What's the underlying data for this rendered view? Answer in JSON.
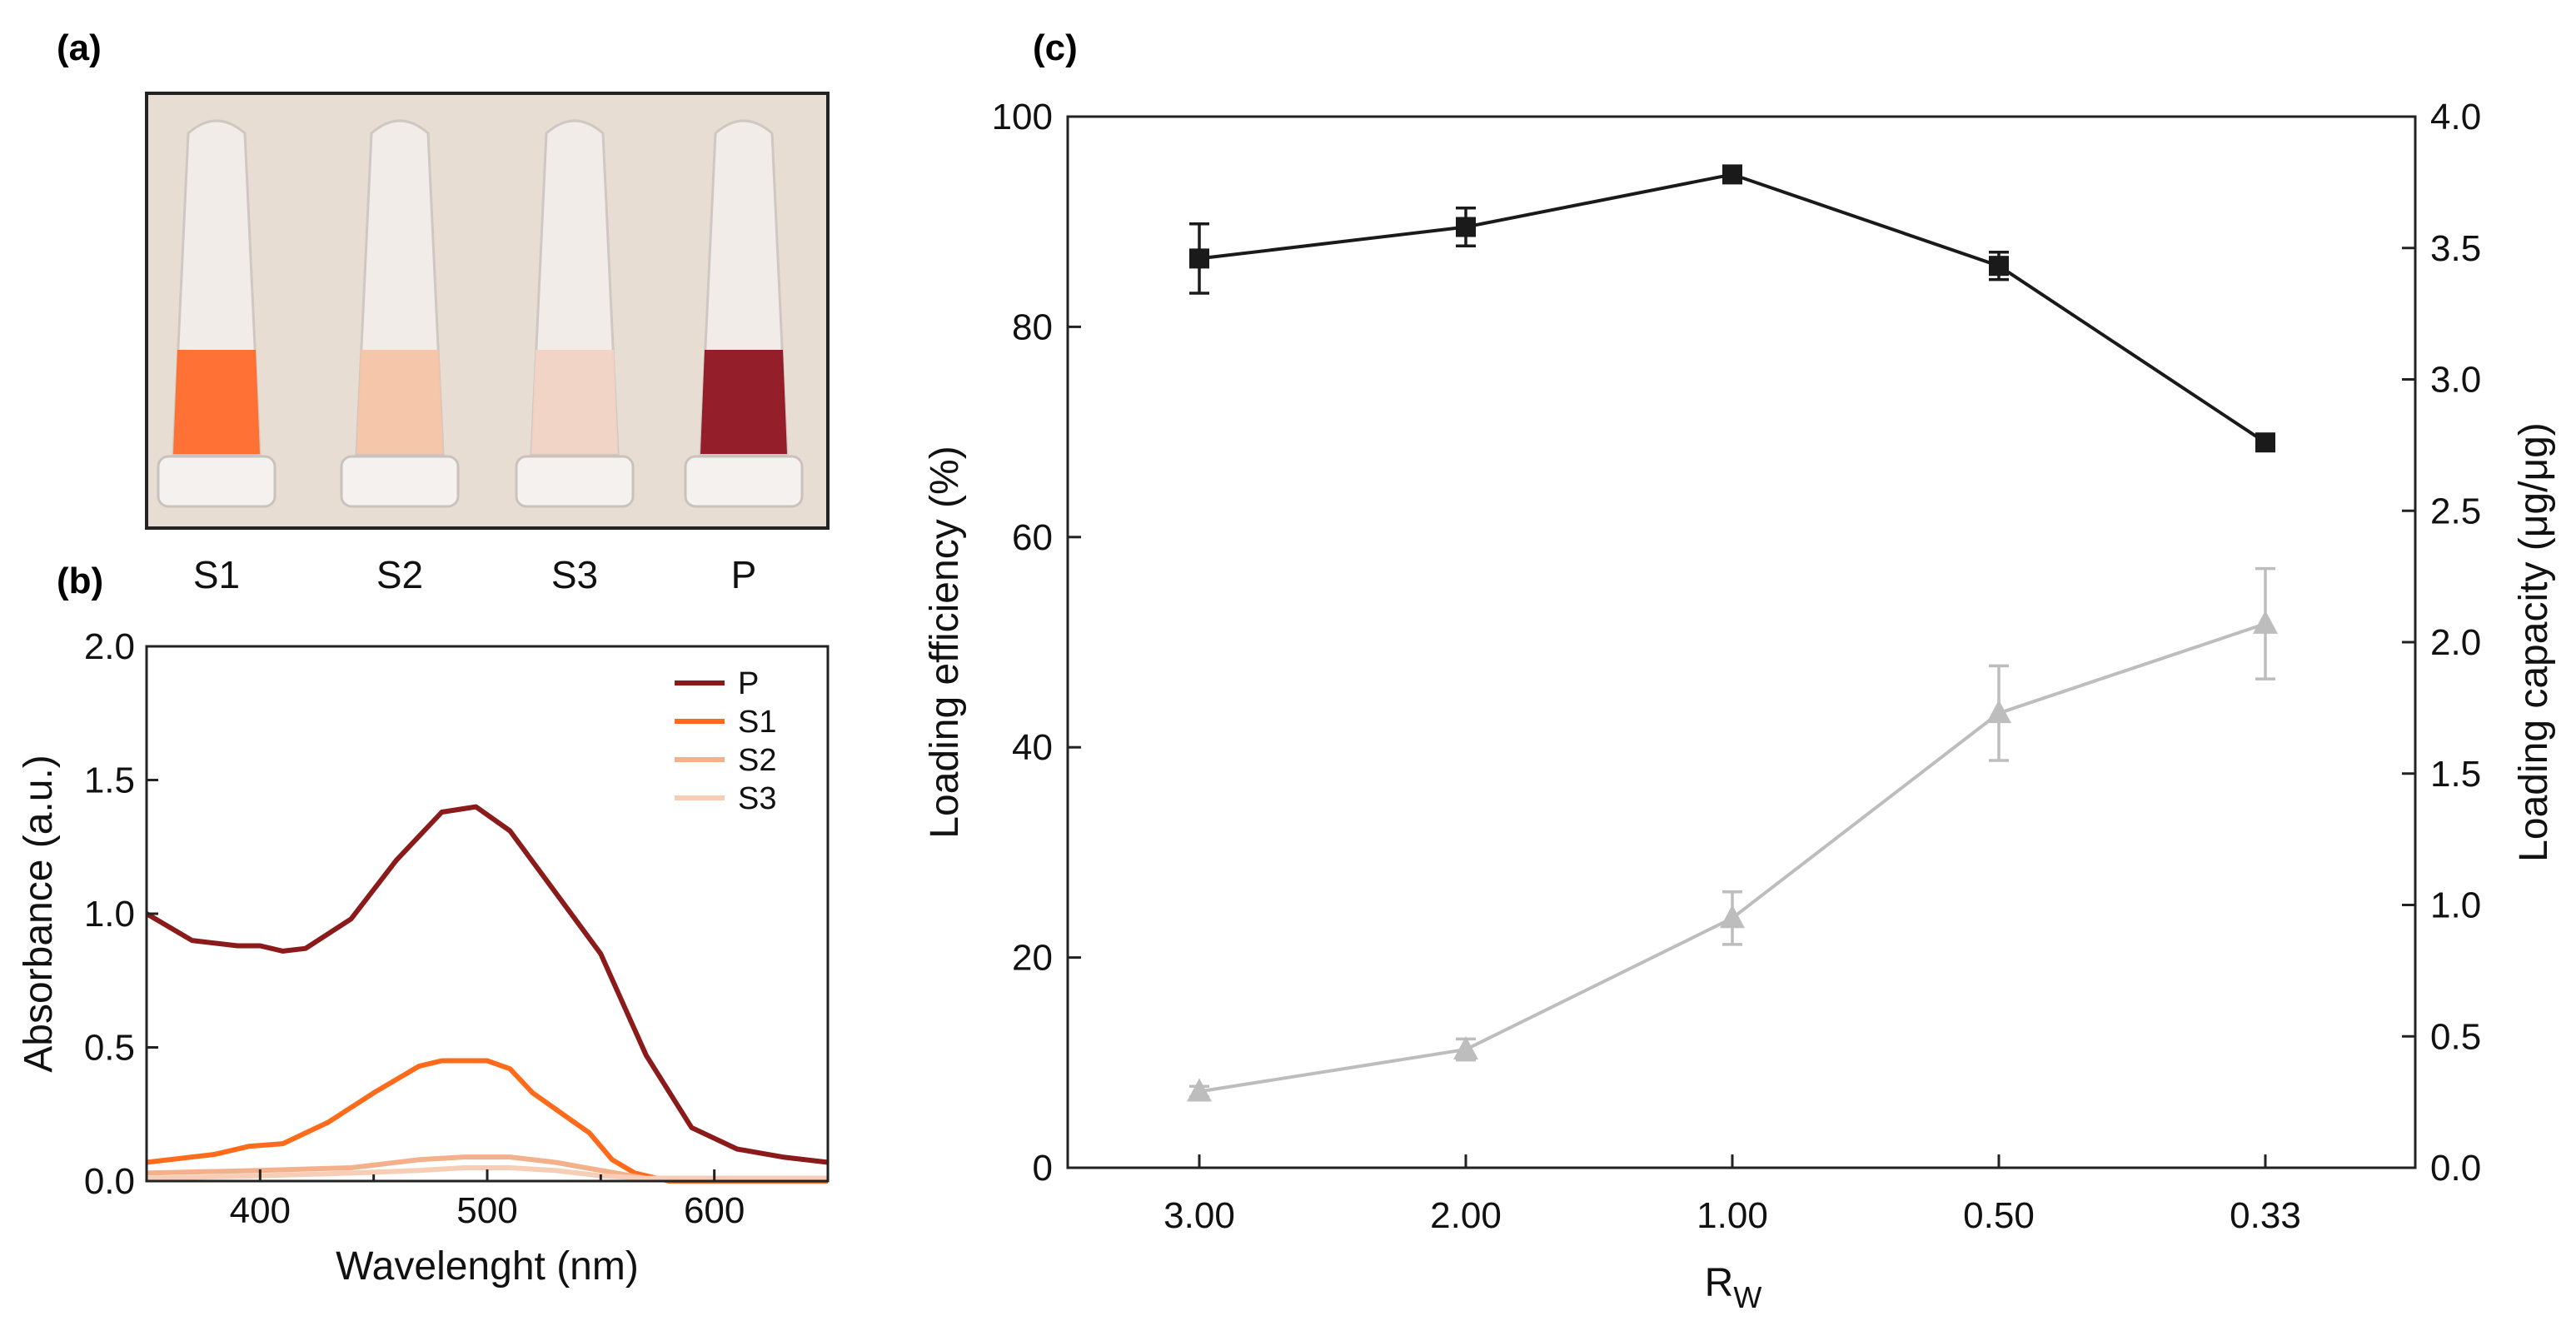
{
  "panels": {
    "a": "(a)",
    "b": "(b)",
    "c": "(c)"
  },
  "photo": {
    "tubes": [
      {
        "label": "S1",
        "color": "#ff6a2a"
      },
      {
        "label": "S2",
        "color": "#f5c4a6"
      },
      {
        "label": "S3",
        "color": "#f1d3c4"
      },
      {
        "label": "P",
        "color": "#8e1420"
      }
    ]
  },
  "chart_data": [
    {
      "id": "b",
      "type": "line",
      "xlabel": "Wavelenght (nm)",
      "ylabel": "Absorbance (a.u.)",
      "xlim": [
        350,
        650
      ],
      "ylim": [
        0,
        2.0
      ],
      "xticks": [
        400,
        500,
        600
      ],
      "yticks": [
        "0.0",
        "0.5",
        "1.0",
        "1.5",
        "2.0"
      ],
      "legend": "top-right",
      "series": [
        {
          "name": "P",
          "color": "#8b1a1a",
          "x": [
            350,
            370,
            390,
            400,
            410,
            420,
            440,
            460,
            480,
            495,
            510,
            530,
            550,
            570,
            590,
            610,
            630,
            650
          ],
          "y": [
            1.0,
            0.9,
            0.88,
            0.88,
            0.86,
            0.87,
            0.98,
            1.2,
            1.38,
            1.4,
            1.31,
            1.08,
            0.85,
            0.47,
            0.2,
            0.12,
            0.09,
            0.07
          ]
        },
        {
          "name": "S1",
          "color": "#ff6b1a",
          "x": [
            350,
            380,
            395,
            410,
            430,
            450,
            470,
            480,
            500,
            510,
            520,
            535,
            545,
            555,
            565,
            580,
            650
          ],
          "y": [
            0.07,
            0.1,
            0.13,
            0.14,
            0.22,
            0.33,
            0.43,
            0.45,
            0.45,
            0.42,
            0.33,
            0.24,
            0.18,
            0.08,
            0.03,
            0.0,
            0.0
          ]
        },
        {
          "name": "S2",
          "color": "#f4b08a",
          "x": [
            350,
            400,
            440,
            470,
            490,
            510,
            530,
            550,
            570,
            650
          ],
          "y": [
            0.03,
            0.04,
            0.05,
            0.08,
            0.09,
            0.09,
            0.07,
            0.04,
            0.01,
            0.01
          ]
        },
        {
          "name": "S3",
          "color": "#f7cdb5",
          "x": [
            350,
            400,
            440,
            470,
            490,
            510,
            530,
            550,
            570,
            650
          ],
          "y": [
            0.01,
            0.02,
            0.03,
            0.04,
            0.05,
            0.05,
            0.04,
            0.02,
            0.01,
            0.01
          ]
        }
      ]
    },
    {
      "id": "c",
      "type": "line",
      "xlabel": "R",
      "xlabel_sub": "W",
      "ylabel": "Loading efficiency (%)",
      "ylabel_right": "Loading capacity (μg/μg)",
      "categories": [
        "3.00",
        "2.00",
        "1.00",
        "0.50",
        "0.33"
      ],
      "ylim": [
        0,
        100
      ],
      "yticks": [
        "0",
        "20",
        "40",
        "60",
        "80",
        "100"
      ],
      "ylim_right": [
        0,
        4.0
      ],
      "yticks_right": [
        "0.0",
        "0.5",
        "1.0",
        "1.5",
        "2.0",
        "2.5",
        "3.0",
        "3.5",
        "4.0"
      ],
      "series": [
        {
          "name": "Loading efficiency",
          "axis": "left",
          "marker": "square",
          "color": "#1a1a1a",
          "values": [
            86.5,
            89.5,
            94.5,
            85.8,
            69.0
          ],
          "errors": [
            3.3,
            1.8,
            0.6,
            1.3,
            0.7
          ]
        },
        {
          "name": "Loading capacity",
          "axis": "right",
          "marker": "triangle",
          "color": "#bdbdbd",
          "values": [
            0.29,
            0.45,
            0.95,
            1.73,
            2.07
          ],
          "errors": [
            0.02,
            0.04,
            0.1,
            0.18,
            0.21
          ]
        }
      ]
    }
  ]
}
